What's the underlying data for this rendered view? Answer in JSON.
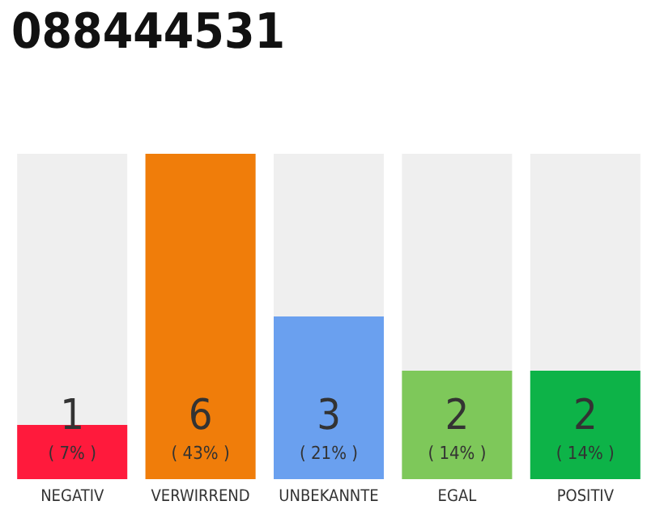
{
  "chart_data": {
    "type": "bar",
    "title": "088444531",
    "categories": [
      "NEGATIV",
      "VERWIRREND",
      "UNBEKANNTE",
      "EGAL",
      "POSITIV"
    ],
    "values": [
      1,
      6,
      3,
      2,
      2
    ],
    "colors": [
      "#ff1a3c",
      "#f07d0a",
      "#6aa0ef",
      "#7ec85a",
      "#0db348"
    ],
    "value_labels": [
      "1\n( 7% )",
      "6\n( 43% )",
      "3\n( 21% )",
      "2\n( 14% )",
      "2\n( 14% )"
    ]
  }
}
